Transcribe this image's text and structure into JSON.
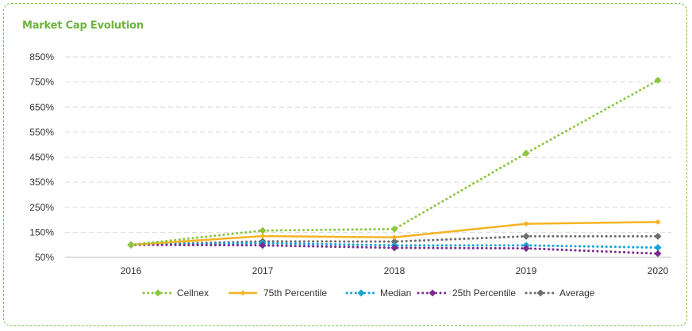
{
  "chart_data": {
    "type": "line",
    "title": "Market Cap Evolution",
    "categories": [
      "2016",
      "2017",
      "2018",
      "2019",
      "2020"
    ],
    "ylim": [
      50,
      850
    ],
    "yticks": [
      50,
      150,
      250,
      350,
      450,
      550,
      650,
      750,
      850
    ],
    "ytick_suffix": "%",
    "grid": true,
    "legend_position": "bottom",
    "series": [
      {
        "name": "Cellnex",
        "values": [
          100,
          157,
          163,
          466,
          757
        ],
        "color": "#8cc63f",
        "style": "dotted",
        "marker": "diamond"
      },
      {
        "name": "75th Percentile",
        "values": [
          100,
          135,
          130,
          184,
          191
        ],
        "color": "#f5b324",
        "style": "solid",
        "marker": "diamond"
      },
      {
        "name": "Median",
        "values": [
          100,
          107,
          98,
          98,
          89
        ],
        "color": "#17a2d8",
        "style": "dotted",
        "marker": "diamond"
      },
      {
        "name": "25th Percentile",
        "values": [
          100,
          98,
          88,
          86,
          65
        ],
        "color": "#7a2d8c",
        "style": "dotted",
        "marker": "diamond"
      },
      {
        "name": "Average",
        "values": [
          100,
          114,
          113,
          134,
          134
        ],
        "color": "#6d6d6d",
        "style": "dotted",
        "marker": "diamond"
      }
    ]
  }
}
